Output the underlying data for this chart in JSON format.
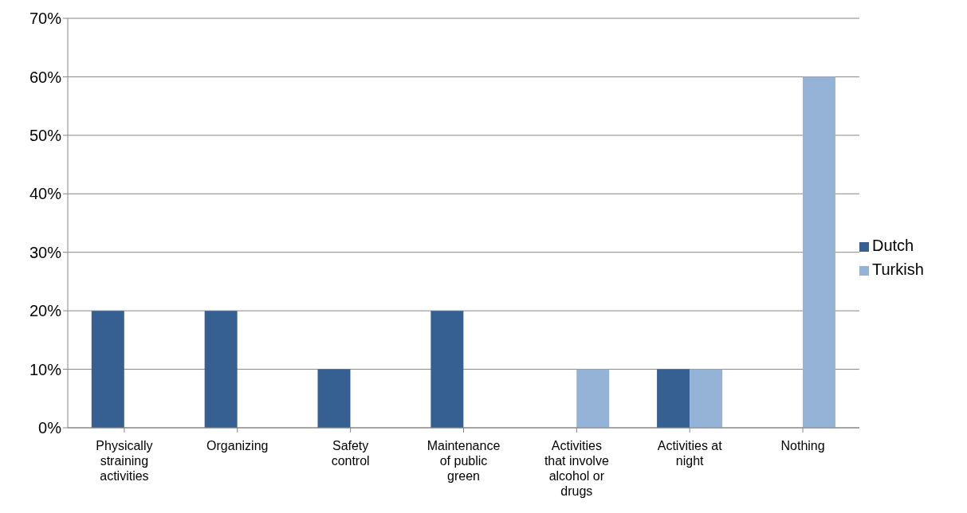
{
  "chart_data": {
    "type": "bar",
    "categories": [
      "Physically straining activities",
      "Organizing",
      "Safety control",
      "Maintenance of public green",
      "Activities that involve alcohol or drugs",
      "Activities at night",
      "Nothing"
    ],
    "series": [
      {
        "name": "Dutch",
        "color": "#376092",
        "values": [
          20,
          20,
          10,
          20,
          0,
          10,
          0
        ]
      },
      {
        "name": "Turkish",
        "color": "#95b3d7",
        "values": [
          0,
          0,
          0,
          0,
          10,
          10,
          60
        ]
      }
    ],
    "ylim": [
      0,
      70
    ],
    "yticks": [
      {
        "value": 0,
        "label": "0%"
      },
      {
        "value": 10,
        "label": "10%"
      },
      {
        "value": 20,
        "label": "20%"
      },
      {
        "value": 30,
        "label": "30%"
      },
      {
        "value": 40,
        "label": "40%"
      },
      {
        "value": 50,
        "label": "50%"
      },
      {
        "value": 60,
        "label": "60%"
      },
      {
        "value": 70,
        "label": "70%"
      }
    ],
    "grid": "y",
    "legend": "right"
  }
}
